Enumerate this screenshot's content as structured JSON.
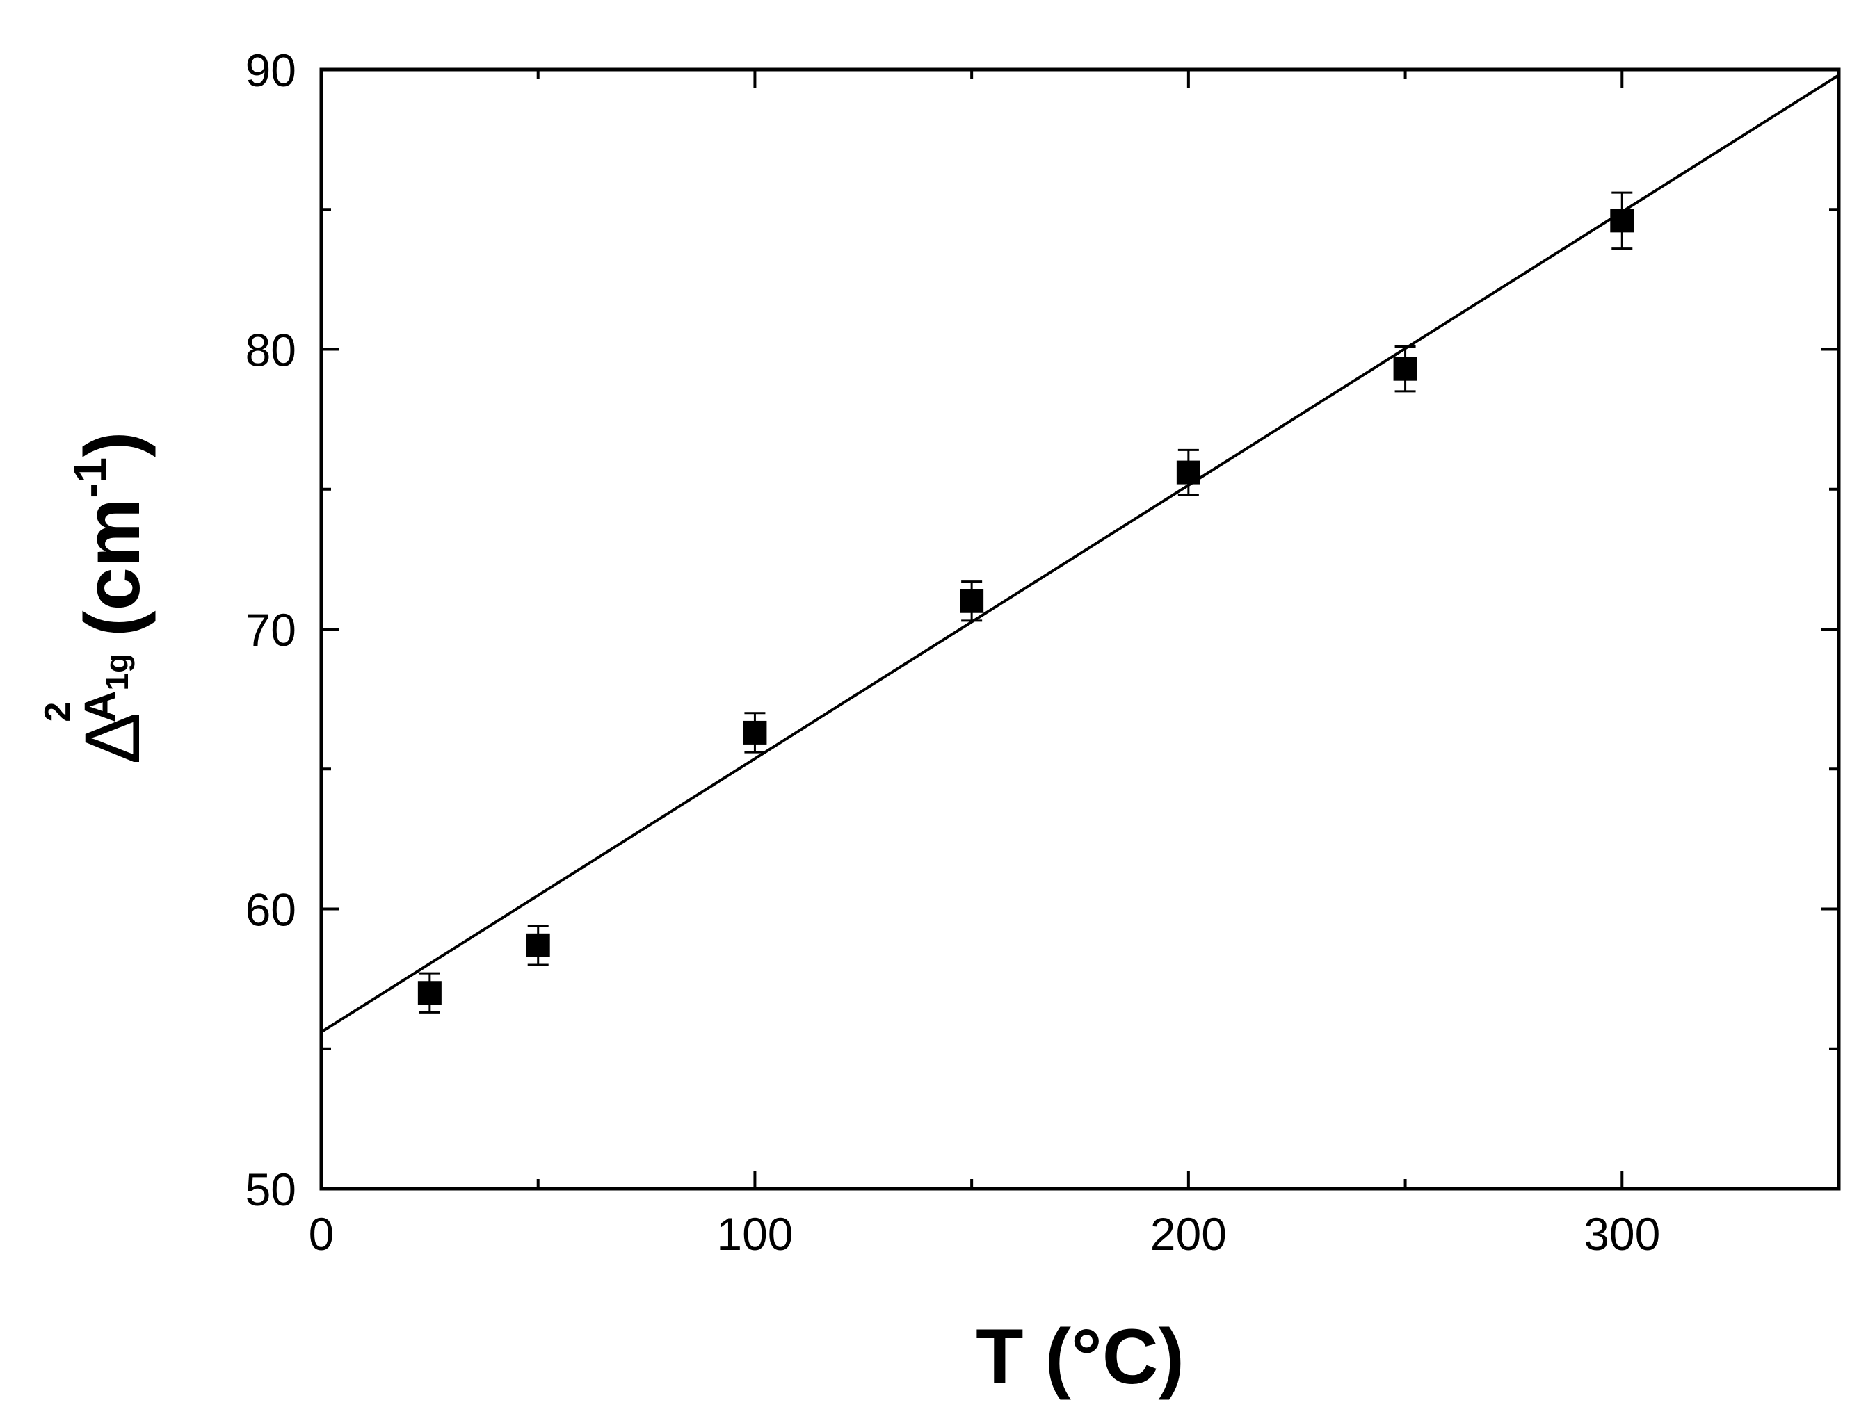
{
  "chart_data": {
    "type": "scatter",
    "xlabel": "T (°C)",
    "ylabel": {
      "symbol": "Δ",
      "superscript": "2",
      "main_sub": "A",
      "sub_sub": "1g",
      "unit_open": "(cm",
      "unit_exp": "-1",
      "unit_close": ")"
    },
    "xlim": [
      0,
      350
    ],
    "ylim": [
      50,
      90
    ],
    "x_ticks": [
      0,
      100,
      200,
      300
    ],
    "y_ticks": [
      50,
      60,
      70,
      80,
      90
    ],
    "x_minor_ticks": [
      50,
      150,
      250,
      350
    ],
    "y_minor_ticks": [
      55,
      65,
      75,
      85
    ],
    "grid": false,
    "series": [
      {
        "marker": "square",
        "x": [
          25,
          50,
          100,
          150,
          200,
          250,
          300
        ],
        "y": [
          57.0,
          58.7,
          66.3,
          71.0,
          75.6,
          79.3,
          84.6
        ],
        "yerr": [
          0.7,
          0.7,
          0.7,
          0.7,
          0.8,
          0.8,
          1.0
        ]
      }
    ],
    "fit_line": {
      "x": [
        0,
        350
      ],
      "y": [
        55.6,
        89.8
      ]
    },
    "colors": {
      "marker": "#000000",
      "line": "#000000",
      "axes": "#000000"
    }
  }
}
